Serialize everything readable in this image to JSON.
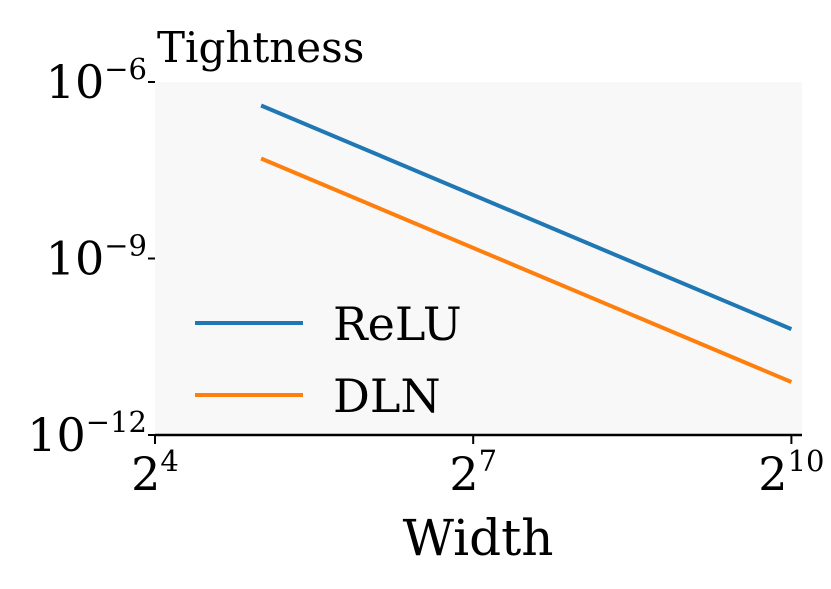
{
  "chart_data": {
    "type": "line",
    "title": "Tightness",
    "xlabel": "Width",
    "ylabel": "",
    "xscale": "log2",
    "yscale": "log10",
    "xlim_log2": [
      4,
      10.1
    ],
    "ylim_log10": [
      -12,
      -6
    ],
    "x_ticks": [
      {
        "base": "2",
        "exp": "4",
        "log": 4
      },
      {
        "base": "2",
        "exp": "7",
        "log": 7
      },
      {
        "base": "2",
        "exp": "10",
        "log": 10
      }
    ],
    "y_ticks": [
      {
        "base": "10",
        "exp": "−6",
        "log": -6
      },
      {
        "base": "10",
        "exp": "−9",
        "log": -9
      },
      {
        "base": "10",
        "exp": "−12",
        "log": -12
      }
    ],
    "series": [
      {
        "name": "ReLU",
        "color": "#1f77b4",
        "x_log2": [
          5,
          10
        ],
        "y_log10": [
          -6.4,
          -10.2
        ]
      },
      {
        "name": "DLN",
        "color": "#ff7f0e",
        "x_log2": [
          5,
          10
        ],
        "y_log10": [
          -7.3,
          -11.1
        ]
      }
    ],
    "legend_position": "bottom-left",
    "grid": false
  }
}
